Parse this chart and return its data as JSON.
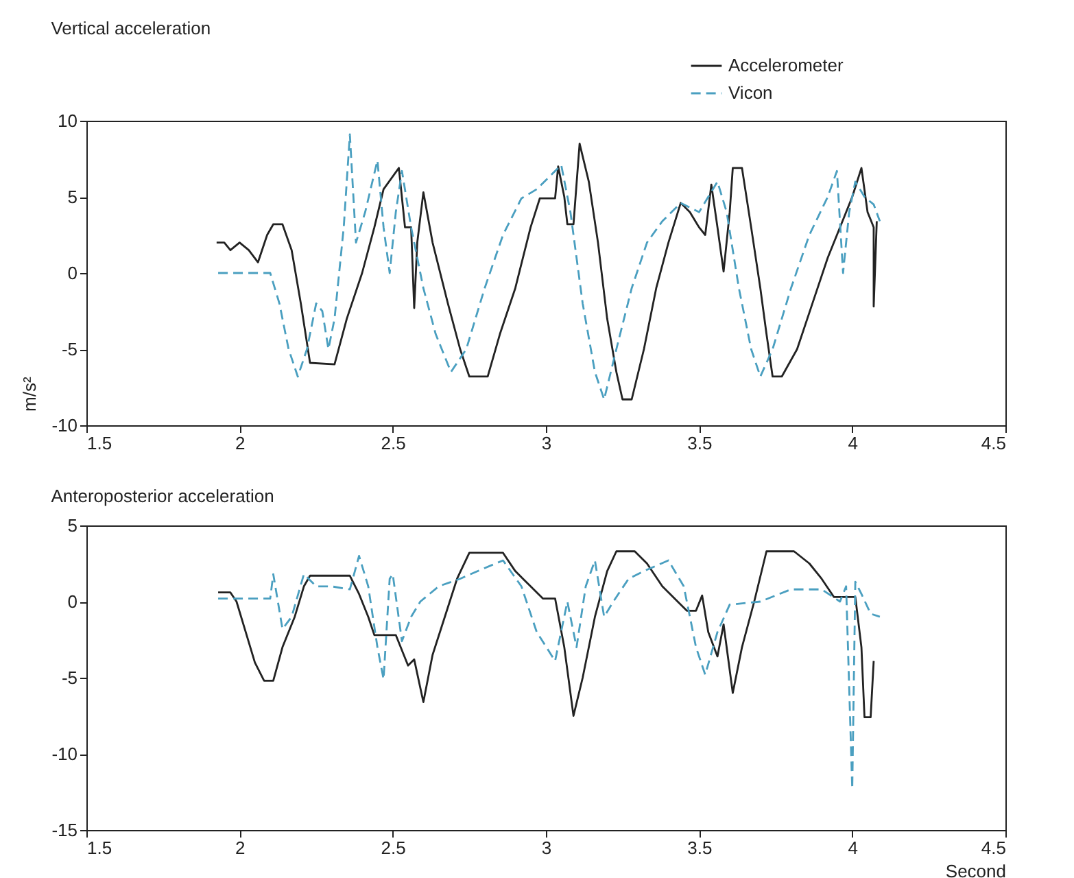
{
  "chart_data": [
    {
      "type": "line",
      "title": "Vertical acceleration",
      "ylabel": "m/s²",
      "legend": "top right",
      "grid": false,
      "xlim": [
        1.5,
        4.5
      ],
      "xticks": [
        1.5,
        2,
        2.5,
        3,
        3.5,
        4,
        4.5
      ],
      "ylim": [
        -10,
        10
      ],
      "yticks": [
        -10,
        -5,
        0,
        5,
        10
      ],
      "series": [
        {
          "name": "Accelerometer",
          "color": "#222222",
          "line_style": "solid",
          "x": [
            1.925,
            1.95,
            1.97,
            2.0,
            2.03,
            2.06,
            2.09,
            2.11,
            2.14,
            2.17,
            2.2,
            2.23,
            2.31,
            2.35,
            2.4,
            2.44,
            2.47,
            2.52,
            2.54,
            2.56,
            2.57,
            2.58,
            2.6,
            2.63,
            2.68,
            2.72,
            2.75,
            2.81,
            2.85,
            2.9,
            2.95,
            2.98,
            3.03,
            3.04,
            3.06,
            3.07,
            3.09,
            3.11,
            3.14,
            3.17,
            3.2,
            3.23,
            3.25,
            3.28,
            3.32,
            3.36,
            3.4,
            3.44,
            3.47,
            3.5,
            3.52,
            3.54,
            3.56,
            3.58,
            3.6,
            3.61,
            3.64,
            3.67,
            3.7,
            3.72,
            3.74,
            3.77,
            3.82,
            3.87,
            3.92,
            3.96,
            4.0,
            4.03,
            4.05,
            4.07,
            4.07,
            4.08
          ],
          "values": [
            2,
            2,
            1.5,
            2,
            1.5,
            0.7,
            2.5,
            3.2,
            3.2,
            1.5,
            -2,
            -5.9,
            -6,
            -3,
            0,
            3,
            5.5,
            6.9,
            3,
            3,
            -2.3,
            2,
            5.3,
            2,
            -2,
            -5,
            -6.8,
            -6.8,
            -4,
            -1,
            3,
            4.9,
            4.9,
            7,
            5,
            3.2,
            3.2,
            8.5,
            6,
            2,
            -3,
            -6.5,
            -8.3,
            -8.3,
            -5,
            -1,
            2,
            4.6,
            4,
            3,
            2.5,
            5.8,
            3,
            0.1,
            4,
            6.9,
            6.9,
            3,
            -1,
            -4,
            -6.8,
            -6.8,
            -5,
            -2,
            1,
            3,
            5,
            6.9,
            4,
            3,
            -2.2,
            3.4
          ]
        },
        {
          "name": "Vicon",
          "color": "#4a9fc0",
          "line_style": "dashed",
          "x": [
            1.93,
            2.1,
            2.13,
            2.16,
            2.19,
            2.22,
            2.25,
            2.27,
            2.29,
            2.31,
            2.34,
            2.36,
            2.38,
            2.41,
            2.45,
            2.47,
            2.49,
            2.51,
            2.53,
            2.56,
            2.6,
            2.64,
            2.69,
            2.74,
            2.8,
            2.86,
            2.92,
            2.97,
            3.02,
            3.05,
            3.08,
            3.12,
            3.16,
            3.19,
            3.23,
            3.28,
            3.33,
            3.38,
            3.44,
            3.5,
            3.56,
            3.59,
            3.63,
            3.67,
            3.7,
            3.74,
            3.8,
            3.86,
            3.92,
            3.95,
            3.97,
            3.99,
            4.01,
            4.04,
            4.07,
            4.09
          ],
          "values": [
            0,
            0,
            -2,
            -5,
            -6.8,
            -5,
            -2,
            -2.5,
            -5,
            -3,
            3,
            9.1,
            2,
            4,
            7.4,
            3,
            0,
            4,
            6.7,
            3,
            -1,
            -4,
            -6.5,
            -5,
            -1,
            2.5,
            4.9,
            5.5,
            6.5,
            7.1,
            4,
            -2,
            -6.5,
            -8.3,
            -5,
            -1,
            2,
            3.4,
            4.6,
            4,
            6,
            4,
            -1,
            -5,
            -6.8,
            -5,
            -1,
            2.5,
            5,
            6.7,
            0,
            4,
            6,
            5,
            4.5,
            3.4
          ]
        }
      ]
    },
    {
      "type": "line",
      "title": "Anteroposterior acceleration",
      "xlabel": "Second",
      "grid": false,
      "xlim": [
        1.5,
        4.5
      ],
      "xticks": [
        1.5,
        2,
        2.5,
        3,
        3.5,
        4,
        4.5
      ],
      "ylim": [
        -15,
        5
      ],
      "yticks": [
        -15,
        -10,
        -5,
        0,
        5
      ],
      "series": [
        {
          "color": "#222222",
          "line_style": "solid",
          "x": [
            1.93,
            1.97,
            1.99,
            2.02,
            2.05,
            2.08,
            2.11,
            2.14,
            2.18,
            2.21,
            2.23,
            2.36,
            2.39,
            2.42,
            2.44,
            2.51,
            2.55,
            2.57,
            2.6,
            2.63,
            2.67,
            2.71,
            2.75,
            2.86,
            2.9,
            2.95,
            2.99,
            3.03,
            3.06,
            3.09,
            3.12,
            3.16,
            3.2,
            3.23,
            3.29,
            3.33,
            3.38,
            3.43,
            3.46,
            3.49,
            3.51,
            3.53,
            3.56,
            3.58,
            3.61,
            3.64,
            3.68,
            3.72,
            3.81,
            3.86,
            3.9,
            3.94,
            4.01,
            4.03,
            4.04,
            4.06,
            4.07
          ],
          "values": [
            0.6,
            0.6,
            0,
            -2,
            -4,
            -5.2,
            -5.2,
            -3,
            -1,
            1,
            1.7,
            1.7,
            0.5,
            -1,
            -2.2,
            -2.2,
            -4.2,
            -3.8,
            -6.6,
            -3.5,
            -1,
            1.5,
            3.2,
            3.2,
            2,
            1,
            0.2,
            0.2,
            -3,
            -7.5,
            -5,
            -1,
            2,
            3.3,
            3.3,
            2.5,
            1,
            0,
            -0.6,
            -0.6,
            0.4,
            -2,
            -3.6,
            -1.5,
            -6,
            -3,
            0,
            3.3,
            3.3,
            2.5,
            1.5,
            0.3,
            0.3,
            -3,
            -7.6,
            -7.6,
            -3.9
          ]
        },
        {
          "color": "#4a9fc0",
          "line_style": "dashed",
          "x": [
            1.93,
            2.1,
            2.11,
            2.14,
            2.17,
            2.21,
            2.25,
            2.3,
            2.36,
            2.39,
            2.42,
            2.45,
            2.47,
            2.49,
            2.5,
            2.53,
            2.56,
            2.59,
            2.65,
            2.72,
            2.8,
            2.86,
            2.92,
            2.97,
            3.03,
            3.07,
            3.1,
            3.13,
            3.16,
            3.19,
            3.22,
            3.27,
            3.32,
            3.4,
            3.45,
            3.49,
            3.52,
            3.56,
            3.6,
            3.7,
            3.8,
            3.9,
            3.96,
            3.98,
            4.0,
            4.01,
            4.03,
            4.06,
            4.09
          ],
          "values": [
            0.2,
            0.2,
            1.8,
            -1.8,
            -1,
            1.8,
            1,
            1,
            0.8,
            3,
            1,
            -3,
            -5.1,
            1.5,
            1.8,
            -2.6,
            -1,
            0,
            1,
            1.5,
            2.2,
            2.7,
            1,
            -2,
            -3.9,
            0,
            -3,
            1,
            2.7,
            -1,
            0,
            1.5,
            2,
            2.7,
            1,
            -3,
            -4.8,
            -2,
            -0.2,
            0,
            0.8,
            0.8,
            0,
            1,
            -12.3,
            1.3,
            0.5,
            -0.8,
            -1
          ]
        }
      ]
    }
  ]
}
